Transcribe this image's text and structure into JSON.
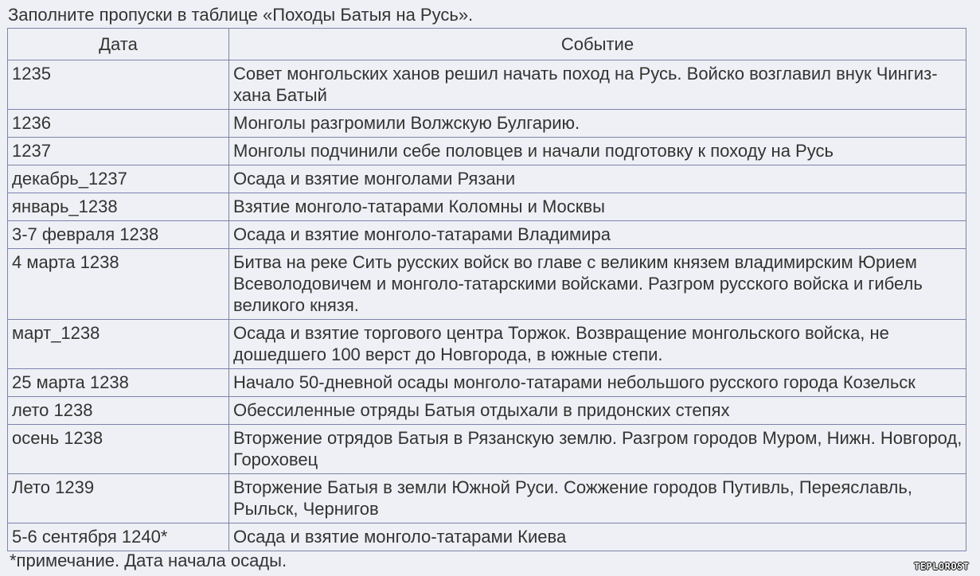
{
  "title": "Заполните пропуски в таблице «Походы Батыя на Русь».",
  "table": {
    "headers": [
      "Дата",
      "Событие"
    ],
    "rows": [
      {
        "date": "1235",
        "event": "Совет монгольских ханов решил начать поход на Русь. Войско возглавил внук Чингиз-хана Батый"
      },
      {
        "date": "1236",
        "event": "Монголы разгромили Волжскую Булгарию."
      },
      {
        "date": "1237",
        "event": "Монголы подчинили себе половцев и начали подготовку к походу на Русь"
      },
      {
        "date": "декабрь_1237",
        "event": "Осада и взятие монголами Рязани"
      },
      {
        "date": "январь_1238",
        "event": "Взятие монголо-татарами Коломны и Москвы"
      },
      {
        "date": "3-7 февраля 1238",
        "event": "Осада и взятие монголо-татарами Владимира"
      },
      {
        "date": "4 марта 1238",
        "event": "Битва на реке Сить русских войск во главе с великим князем владимирским Юрием Всеволодовичем и монголо-татарскими войсками. Разгром русского войска и гибель великого князя."
      },
      {
        "date": "март_1238",
        "event": "Осада и взятие торгового центра Торжок. Возвращение монгольского войска, не дошедшего 100 верст до Новгорода, в южные степи."
      },
      {
        "date": "25 марта 1238",
        "event": "Начало 50-дневной осады монголо-татарами небольшого русского города Козельск"
      },
      {
        "date": "лето 1238",
        "event": "Обессиленные отряды Батыя отдыхали в придонских степях"
      },
      {
        "date": "осень 1238",
        "event": "Вторжение отрядов Батыя в Рязанскую землю. Разгром городов Муром, Нижн. Новгород, Гороховец"
      },
      {
        "date": "Лето 1239",
        "event": "Вторжение Батыя в земли Южной Руси. Сожжение городов Путивль, Переяславль, Рыльск, Чернигов"
      },
      {
        "date": "5-6 сентября 1240*",
        "event": "Осада и взятие монголо-татарами Киева"
      }
    ]
  },
  "note": "*примечание. Дата начала осады.",
  "watermark": "TEPLOROST",
  "colors": {
    "background": "#eff0f5",
    "border": "#7d82ab",
    "text": "#333333"
  }
}
